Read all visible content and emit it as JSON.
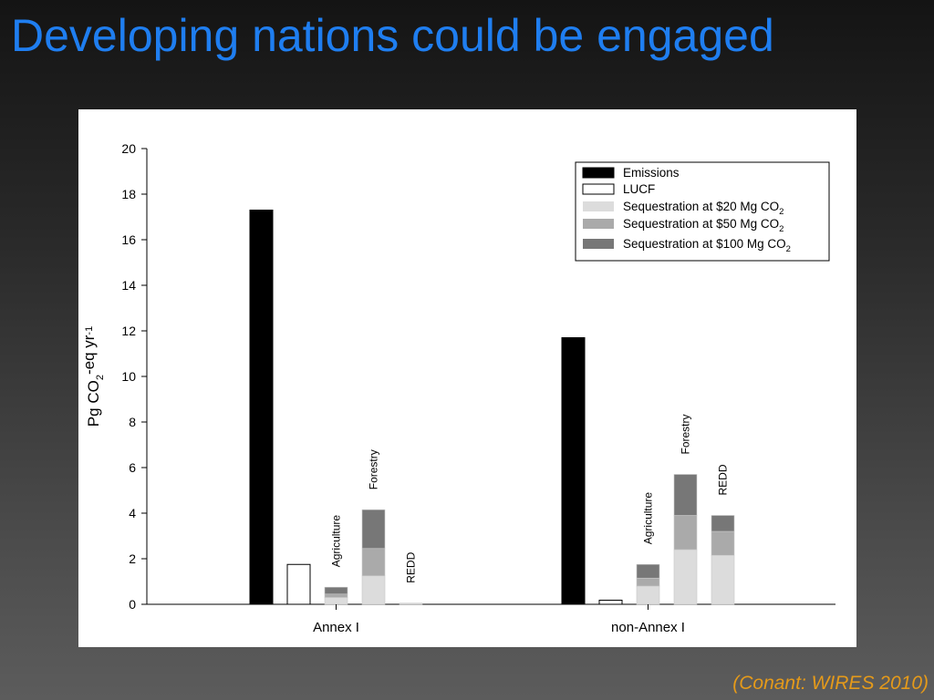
{
  "slide": {
    "title": "Developing nations could be engaged",
    "citation": "(Conant: WIRES 2010)"
  },
  "chart_data": {
    "type": "bar",
    "ylabel": "Pg CO2-eq yr-1",
    "ylim": [
      0,
      20
    ],
    "yticks": [
      0,
      2,
      4,
      6,
      8,
      10,
      12,
      14,
      16,
      18,
      20
    ],
    "legend_position": "top-right",
    "groups": [
      {
        "name": "Annex I",
        "emissions": 17.3,
        "lucf": 1.75,
        "stacks": [
          {
            "label": "Agriculture",
            "s20": 0.3,
            "s50": 0.15,
            "s100": 0.3
          },
          {
            "label": "Forestry",
            "s20": 1.25,
            "s50": 1.2,
            "s100": 1.7
          },
          {
            "label": "REDD",
            "s20": 0.05,
            "s50": 0.0,
            "s100": 0.0
          }
        ]
      },
      {
        "name": "non-Annex I",
        "emissions": 11.7,
        "lucf": 0.18,
        "stacks": [
          {
            "label": "Agriculture",
            "s20": 0.8,
            "s50": 0.35,
            "s100": 0.6
          },
          {
            "label": "Forestry",
            "s20": 2.4,
            "s50": 1.5,
            "s100": 1.8
          },
          {
            "label": "REDD",
            "s20": 2.15,
            "s50": 1.05,
            "s100": 0.7
          }
        ]
      }
    ],
    "legend": [
      {
        "key": "emissions",
        "label": "Emissions",
        "sub": "",
        "color": "#000000"
      },
      {
        "key": "lucf",
        "label": "LUCF",
        "sub": "",
        "color": "#ffffff"
      },
      {
        "key": "s20",
        "label": "Sequestration at $20 Mg CO",
        "sub": "2",
        "color": "#dcdcdc"
      },
      {
        "key": "s50",
        "label": "Sequestration at $50 Mg CO",
        "sub": "2",
        "color": "#aaaaaa"
      },
      {
        "key": "s100",
        "label": "Sequestration at $100 Mg CO",
        "sub": "2",
        "color": "#777777"
      }
    ]
  }
}
